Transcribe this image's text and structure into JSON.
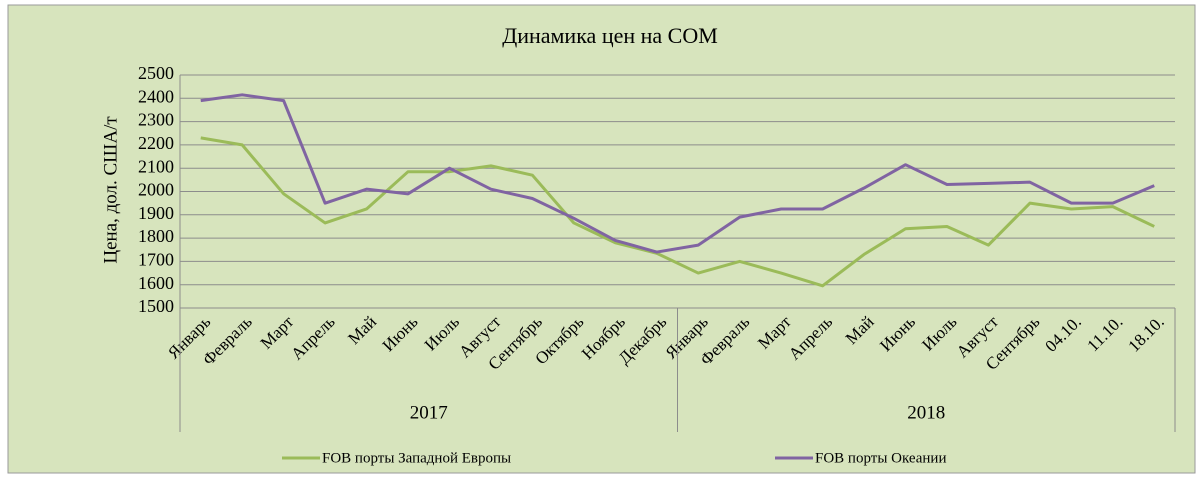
{
  "chart_data": {
    "type": "line",
    "title": "Динамика цен на СОМ",
    "y_label": "Цена, дол. США/т",
    "groups": [
      {
        "name": "2017",
        "categories": [
          "Январь",
          "Февраль",
          "Март",
          "Апрель",
          "Май",
          "Июнь",
          "Июль",
          "Август",
          "Сентябрь",
          "Октябрь",
          "Ноябрь",
          "Декабрь"
        ]
      },
      {
        "name": "2018",
        "categories": [
          "Январь",
          "Февраль",
          "Март",
          "Апрель",
          "Май",
          "Июнь",
          "Июль",
          "Август",
          "Сентябрь",
          "04.10.",
          "11.10.",
          "18.10."
        ]
      }
    ],
    "series": [
      {
        "name": "FOB порты Западной Европы",
        "color": "#9bbb59",
        "values": [
          2230,
          2200,
          1990,
          1865,
          1925,
          2085,
          2085,
          2110,
          2070,
          1865,
          1780,
          1735,
          1650,
          1700,
          1650,
          1595,
          1730,
          1840,
          1850,
          1770,
          1950,
          1925,
          1935,
          1850
        ]
      },
      {
        "name": "FOB порты Океании",
        "color": "#8064a2",
        "values": [
          2390,
          2415,
          2390,
          1950,
          2010,
          1990,
          2100,
          2010,
          1970,
          1885,
          1790,
          1740,
          1770,
          1890,
          1925,
          1925,
          2015,
          2115,
          2030,
          2035,
          2040,
          1950,
          1950,
          2025
        ]
      }
    ],
    "ylim": [
      1500,
      2500
    ],
    "yticks": [
      1500,
      1600,
      1700,
      1800,
      1900,
      2000,
      2100,
      2200,
      2300,
      2400,
      2500
    ],
    "grid": true,
    "legend": "bottom"
  }
}
